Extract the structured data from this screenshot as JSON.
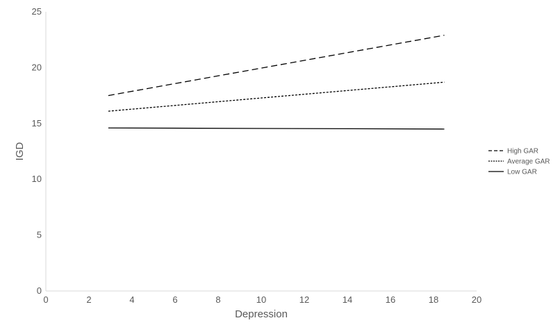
{
  "chart_data": {
    "type": "line",
    "title": "",
    "xlabel": "Depression",
    "ylabel": "IGD",
    "xlim": [
      0,
      20
    ],
    "ylim": [
      0,
      25
    ],
    "x_ticks": [
      0,
      2,
      4,
      6,
      8,
      10,
      12,
      14,
      16,
      18,
      20
    ],
    "y_ticks": [
      0,
      5,
      10,
      15,
      20,
      25
    ],
    "grid": false,
    "legend_position": "right",
    "series": [
      {
        "name": "High GAR",
        "style": "long-dash",
        "color": "#000000",
        "x": [
          2.9,
          18.5
        ],
        "y": [
          17.5,
          22.9
        ]
      },
      {
        "name": "Average GAR",
        "style": "short-dash",
        "color": "#000000",
        "x": [
          2.9,
          18.5
        ],
        "y": [
          16.1,
          18.7
        ]
      },
      {
        "name": "Low GAR",
        "style": "solid",
        "color": "#000000",
        "x": [
          2.9,
          18.5
        ],
        "y": [
          14.6,
          14.5
        ]
      }
    ]
  }
}
